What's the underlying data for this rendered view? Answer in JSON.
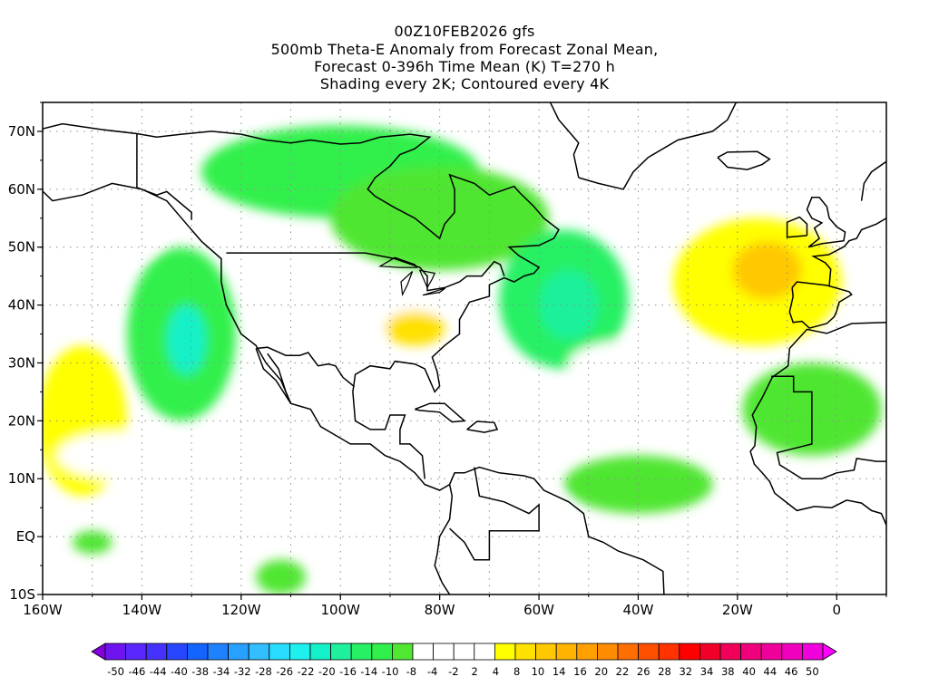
{
  "title": {
    "lines": [
      "00Z10FEB2026 gfs",
      "500mb Theta-E Anomaly from Forecast Zonal Mean,",
      "Forecast 0-396h Time Mean (K) T=270 h",
      "Shading every 2K; Contoured every 4K"
    ]
  },
  "axes": {
    "lon_range": [
      -160,
      10
    ],
    "lat_range": [
      -10,
      75
    ],
    "x_ticks": [
      {
        "lon": -160,
        "label": "160W"
      },
      {
        "lon": -140,
        "label": "140W"
      },
      {
        "lon": -120,
        "label": "120W"
      },
      {
        "lon": -100,
        "label": "100W"
      },
      {
        "lon": -80,
        "label": "80W"
      },
      {
        "lon": -60,
        "label": "60W"
      },
      {
        "lon": -40,
        "label": "40W"
      },
      {
        "lon": -20,
        "label": "20W"
      },
      {
        "lon": 0,
        "label": "0"
      }
    ],
    "y_ticks": [
      {
        "lat": -10,
        "label": "10S"
      },
      {
        "lat": 0,
        "label": "EQ"
      },
      {
        "lat": 10,
        "label": "10N"
      },
      {
        "lat": 20,
        "label": "20N"
      },
      {
        "lat": 30,
        "label": "30N"
      },
      {
        "lat": 40,
        "label": "40N"
      },
      {
        "lat": 50,
        "label": "50N"
      },
      {
        "lat": 60,
        "label": "60N"
      },
      {
        "lat": 70,
        "label": "70N"
      }
    ],
    "grid": "dotted",
    "grid_lon_step": 10,
    "grid_lat_step": 10
  },
  "colorbar": {
    "colors": [
      "#8200dc",
      "#6e14f0",
      "#5a28ff",
      "#4632ff",
      "#2846ff",
      "#1464ff",
      "#1e82ff",
      "#28a0ff",
      "#32beff",
      "#28dcff",
      "#1ef0f0",
      "#14f0c8",
      "#1ef09b",
      "#28f064",
      "#32f04b",
      "#50e632",
      "#ffffff",
      "#ffffff",
      "#ffffff",
      "#ffffff",
      "#ffff00",
      "#ffe100",
      "#ffc800",
      "#ffb400",
      "#ffa000",
      "#ff8c00",
      "#ff6e00",
      "#ff5000",
      "#ff3200",
      "#ff0000",
      "#f00028",
      "#f0005a",
      "#f0007d",
      "#f0009b",
      "#f000be",
      "#f000dc",
      "#ff00ff"
    ],
    "labels": [
      "-50",
      "-46",
      "-44",
      "-40",
      "-38",
      "-34",
      "-32",
      "-28",
      "-26",
      "-22",
      "-20",
      "-16",
      "-14",
      "-10",
      "-8",
      "-4",
      "-2",
      "2",
      "4",
      "8",
      "10",
      "14",
      "16",
      "20",
      "22",
      "26",
      "28",
      "32",
      "34",
      "38",
      "40",
      "44",
      "46",
      "50"
    ]
  },
  "field": {
    "units": "K",
    "features": [
      {
        "kind": "positive",
        "value": 4,
        "lon": -150,
        "lat": 52,
        "rx": 14,
        "ry": 5
      },
      {
        "kind": "positive",
        "value": 8,
        "lon": -152,
        "lat": 20,
        "rx": 9,
        "ry": 13
      },
      {
        "kind": "positive",
        "value": 4,
        "lon": -145,
        "lat": 14,
        "rx": 12,
        "ry": 4
      },
      {
        "kind": "negative",
        "value": -10,
        "lon": -132,
        "lat": 35,
        "rx": 11,
        "ry": 15
      },
      {
        "kind": "negative",
        "value": -20,
        "lon": -131,
        "lat": 34,
        "rx": 4,
        "ry": 6
      },
      {
        "kind": "negative",
        "value": -10,
        "lon": -100,
        "lat": 63,
        "rx": 28,
        "ry": 8
      },
      {
        "kind": "negative",
        "value": -8,
        "lon": -80,
        "lat": 55,
        "rx": 22,
        "ry": 9
      },
      {
        "kind": "negative",
        "value": -12,
        "lon": -55,
        "lat": 41,
        "rx": 13,
        "ry": 12
      },
      {
        "kind": "negative",
        "value": -16,
        "lon": -54,
        "lat": 40,
        "rx": 6,
        "ry": 6
      },
      {
        "kind": "positive",
        "value": 6,
        "lon": -95,
        "lat": 40,
        "rx": 15,
        "ry": 5
      },
      {
        "kind": "positive",
        "value": 10,
        "lon": -85,
        "lat": 36,
        "rx": 6,
        "ry": 3
      },
      {
        "kind": "positive",
        "value": 4,
        "lon": -30,
        "lat": 66,
        "rx": 18,
        "ry": 5
      },
      {
        "kind": "positive",
        "value": 8,
        "lon": -16,
        "lat": 44,
        "rx": 17,
        "ry": 11
      },
      {
        "kind": "positive",
        "value": 14,
        "lon": -14,
        "lat": 46,
        "rx": 7,
        "ry": 5
      },
      {
        "kind": "positive",
        "value": 4,
        "lon": -40,
        "lat": 30,
        "rx": 14,
        "ry": 4
      },
      {
        "kind": "negative",
        "value": -8,
        "lon": -40,
        "lat": 9,
        "rx": 15,
        "ry": 5
      },
      {
        "kind": "negative",
        "value": -8,
        "lon": -5,
        "lat": 22,
        "rx": 14,
        "ry": 8
      },
      {
        "kind": "positive",
        "value": 6,
        "lon": -65,
        "lat": 0,
        "rx": 14,
        "ry": 10
      },
      {
        "kind": "negative",
        "value": -8,
        "lon": -112,
        "lat": -7,
        "rx": 5,
        "ry": 3
      },
      {
        "kind": "negative",
        "value": -8,
        "lon": -150,
        "lat": -1,
        "rx": 4,
        "ry": 2
      }
    ]
  }
}
